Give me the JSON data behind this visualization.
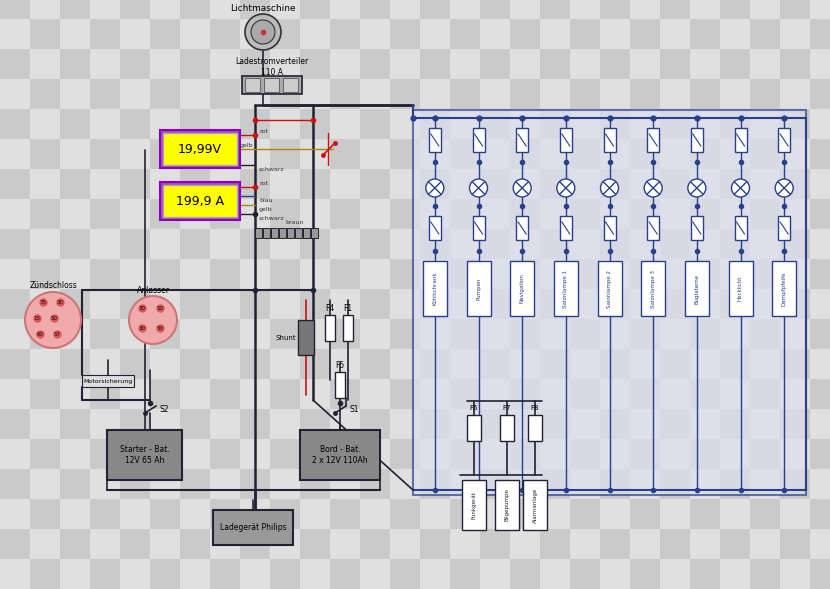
{
  "bg_checker_light": "#e0e0e0",
  "bg_checker_dark": "#cacaca",
  "checker_size": 30,
  "wire_black": "#222233",
  "wire_red": "#cc1111",
  "wire_blue": "#2a3f8a",
  "wire_yellow": "#aa8800",
  "voltmeter_fill": "#ffff00",
  "voltmeter_border_outer": "#aa44cc",
  "voltmeter_text1": "19,99V",
  "voltmeter_text2": "199,9 A",
  "comp_fill": "#b8b8b8",
  "comp_edge": "#333333",
  "battery_fill": "#888888",
  "right_panel_bg": "#dde0f0",
  "right_panel_edge": "#2a3f8a",
  "zs_fill": "#f0aaaa",
  "zs_edge": "#cc7777",
  "gen_fill": "#bbbbbb",
  "gen_edge": "#333333",
  "lsv_fill": "#aaaaaa",
  "white": "#ffffff",
  "title_lichtmaschine": "Lichtmaschine",
  "title_ladestromverteiler": "Ladestromverteiler\n110 A",
  "title_zuendschloss": "Zündschloss",
  "title_anlasser": "Anlasser",
  "title_motorsicherung": "Motorsicherung",
  "title_starter_bat": "Starter - Bat.\n12V 65 Ah",
  "title_bord_bat": "Bord - Bat.\n2 x 12V 110Ah",
  "title_ladegeraet": "Ladegerät Philips",
  "label_shunt": "Shunt",
  "label_f4": "F4",
  "label_f1": "F1",
  "label_f5": "F5",
  "label_s1": "S1",
  "label_s2": "S2",
  "label_f6": "F6",
  "label_f7": "F7",
  "label_f8": "F8",
  "right_labels": [
    "Kühlschrank",
    "Pumpen",
    "Navigation",
    "Salonlampe 1",
    "Salonlampe 2",
    "Salonlampe 3",
    "Buglaterne",
    "Hecklicht",
    "Dampfpfeife"
  ]
}
